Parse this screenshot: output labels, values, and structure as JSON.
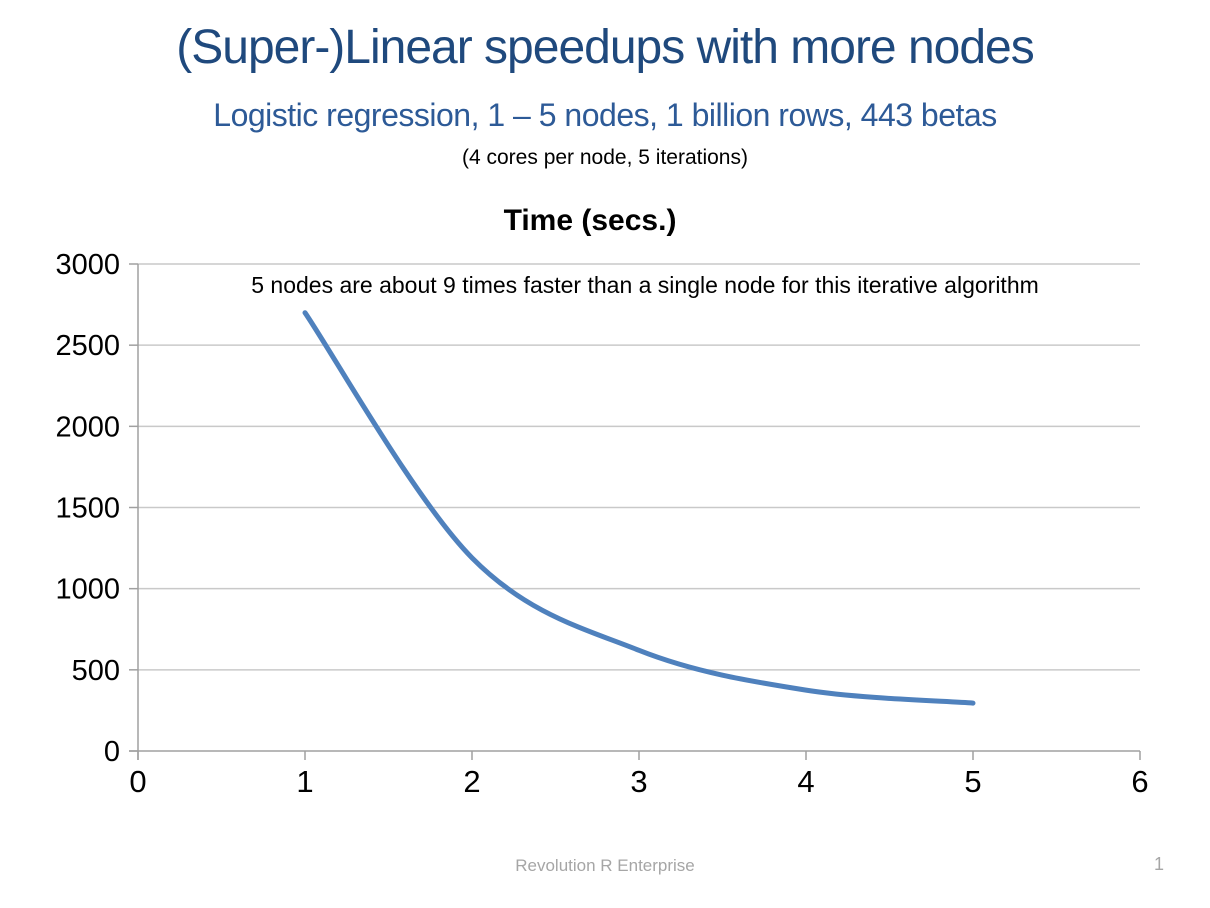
{
  "slide": {
    "title": "(Super-)Linear speedups with more nodes",
    "subtitle": "Logistic regression, 1 – 5 nodes, 1 billion rows, 443 betas",
    "note": "(4 cores per node, 5 iterations)",
    "footer_text": "Revolution R Enterprise",
    "page_number": "1"
  },
  "chart_data": {
    "type": "line",
    "title": "Time (secs.)",
    "annotation": "5 nodes are about 9 times faster than a single node for this iterative algorithm",
    "x": [
      1,
      2,
      3,
      4,
      5
    ],
    "series": [
      {
        "name": "Time (secs.)",
        "values": [
          2700,
          1190,
          620,
          375,
          295
        ]
      }
    ],
    "xlim": [
      0,
      6
    ],
    "ylim": [
      0,
      3000
    ],
    "xticks": [
      0,
      1,
      2,
      3,
      4,
      5,
      6
    ],
    "yticks": [
      0,
      500,
      1000,
      1500,
      2000,
      2500,
      3000
    ],
    "grid": "horizontal-only",
    "legend": "none",
    "smooth": true
  },
  "colors": {
    "title": "#1F497D",
    "subtitle": "#2D5A97",
    "text": "#000000",
    "line": "#4F81BD",
    "gridline": "#C9C9C9",
    "axis": "#A0A0A0",
    "footer": "#A6A6A6",
    "background": "#FFFFFF"
  }
}
